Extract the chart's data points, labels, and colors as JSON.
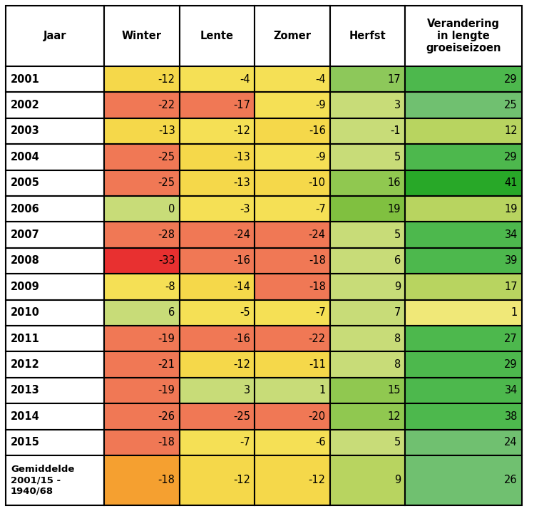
{
  "headers": [
    "Jaar",
    "Winter",
    "Lente",
    "Zomer",
    "Herfst",
    "Verandering\nin lengte\ngroeiseizoen"
  ],
  "years": [
    "2001",
    "2002",
    "2003",
    "2004",
    "2005",
    "2006",
    "2007",
    "2008",
    "2009",
    "2010",
    "2011",
    "2012",
    "2013",
    "2014",
    "2015",
    "Gemiddelde\n2001/15 -\n1940/68"
  ],
  "data": [
    [
      -12,
      -4,
      -4,
      17,
      29
    ],
    [
      -22,
      -17,
      -9,
      3,
      25
    ],
    [
      -13,
      -12,
      -16,
      -1,
      12
    ],
    [
      -25,
      -13,
      -9,
      5,
      29
    ],
    [
      -25,
      -13,
      -10,
      16,
      41
    ],
    [
      0,
      -3,
      -7,
      19,
      19
    ],
    [
      -28,
      -24,
      -24,
      5,
      34
    ],
    [
      -33,
      -16,
      -18,
      6,
      39
    ],
    [
      -8,
      -14,
      -18,
      9,
      17
    ],
    [
      6,
      -5,
      -7,
      7,
      1
    ],
    [
      -19,
      -16,
      -22,
      8,
      27
    ],
    [
      -21,
      -12,
      -11,
      8,
      29
    ],
    [
      -19,
      3,
      1,
      15,
      34
    ],
    [
      -26,
      -25,
      -20,
      12,
      38
    ],
    [
      -18,
      -7,
      -6,
      5,
      24
    ],
    [
      -18,
      -12,
      -12,
      9,
      26
    ]
  ],
  "cell_colors": [
    [
      "#F5D84A",
      "#F5E055",
      "#F5E055",
      "#8DC85A",
      "#4DB84D"
    ],
    [
      "#F07855",
      "#F07855",
      "#F5E055",
      "#C8DC78",
      "#70C070"
    ],
    [
      "#F5D84A",
      "#F5E055",
      "#F5D84A",
      "#C8DC78",
      "#B8D460"
    ],
    [
      "#F07855",
      "#F5D84A",
      "#F5E055",
      "#C8DC78",
      "#4DB84D"
    ],
    [
      "#F07855",
      "#F5D84A",
      "#F5D84A",
      "#90C850",
      "#28A828"
    ],
    [
      "#C8DC78",
      "#F5E055",
      "#F5E055",
      "#80C040",
      "#B8D460"
    ],
    [
      "#F07855",
      "#F07855",
      "#F07855",
      "#C8DC78",
      "#4DB84D"
    ],
    [
      "#E83030",
      "#F07855",
      "#F07855",
      "#C8DC78",
      "#4DB84D"
    ],
    [
      "#F5E055",
      "#F5D84A",
      "#F07855",
      "#C8DC78",
      "#B8D460"
    ],
    [
      "#C8DC78",
      "#F5E055",
      "#F5E055",
      "#C8DC78",
      "#F0E878"
    ],
    [
      "#F07855",
      "#F07855",
      "#F07855",
      "#C8DC78",
      "#4DB84D"
    ],
    [
      "#F07855",
      "#F5D84A",
      "#F5D84A",
      "#C8DC78",
      "#4DB84D"
    ],
    [
      "#F07855",
      "#C8DC78",
      "#C8DC78",
      "#90C850",
      "#4DB84D"
    ],
    [
      "#F07855",
      "#F07855",
      "#F07855",
      "#90C850",
      "#4DB84D"
    ],
    [
      "#F07855",
      "#F5E055",
      "#F5E055",
      "#C8DC78",
      "#70C070"
    ],
    [
      "#F5A030",
      "#F5D84A",
      "#F5D84A",
      "#B8D460",
      "#70C070"
    ]
  ],
  "header_bg": "#FFFFFF",
  "year_col_bg": "#FFFFFF",
  "border_color": "#000000",
  "text_color": "#000000",
  "figsize": [
    7.7,
    7.17
  ],
  "dpi": 100
}
